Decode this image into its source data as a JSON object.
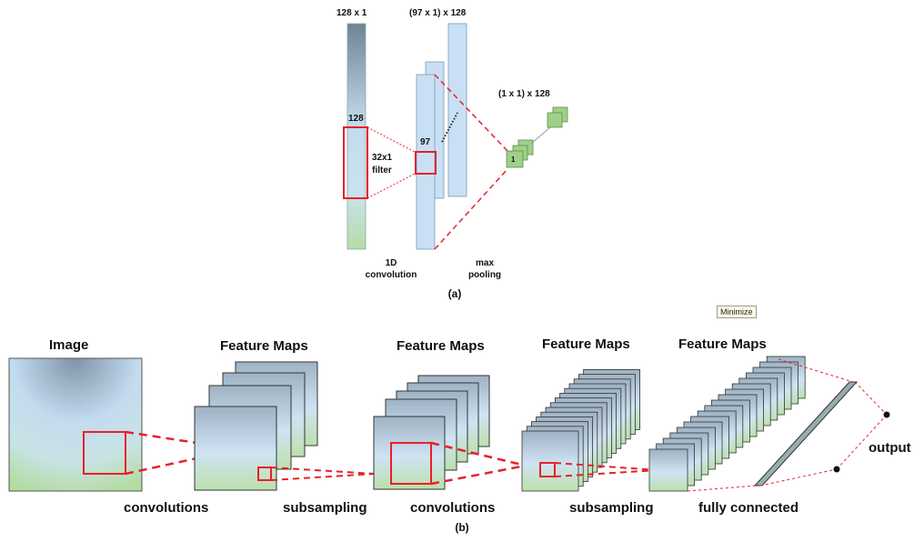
{
  "panel_a": {
    "input_dim": "128 x 1",
    "input_len": "128",
    "filter_label_line1": "32x1",
    "filter_label_line2": "filter",
    "conv_dim": "(97 x 1) x 128",
    "conv_len": "97",
    "pool_dim": "(1 x 1) x 128",
    "pool_len": "1",
    "conv_caption_line1": "1D",
    "conv_caption_line2": "convolution",
    "pool_caption_line1": "max",
    "pool_caption_line2": "pooling",
    "caption": "(a)"
  },
  "panel_b": {
    "image_label": "Image",
    "fm1_label": "Feature Maps",
    "fm2_label": "Feature Maps",
    "fm3_label": "Feature Maps",
    "fm4_label": "Feature Maps",
    "step1": "convolutions",
    "step2": "subsampling",
    "step3": "convolutions",
    "step4": "subsampling",
    "step5": "fully connected",
    "output_label": "output",
    "caption": "(b)"
  },
  "tooltip": "Minimize",
  "colors": {
    "map_top": "#8fa3b4",
    "map_mid": "#c4dbee",
    "map_bottom": "#b6dca6",
    "filter_box": "#e8202a",
    "pool_green": "#9fd08a",
    "bar_blue": "#c9e0f4"
  }
}
